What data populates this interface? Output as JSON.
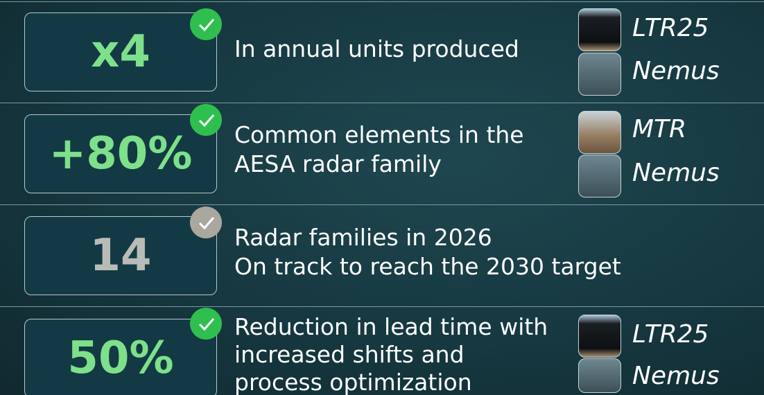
{
  "rows": [
    {
      "metric": "x4",
      "description": [
        "In annual units produced"
      ],
      "products": [
        "LTR25",
        "Nemus"
      ]
    },
    {
      "metric": "+80%",
      "description": [
        "Common elements in the",
        "AESA radar family"
      ],
      "products": [
        "MTR",
        "Nemus"
      ]
    },
    {
      "metric": "14",
      "description": [
        "Radar families in 2026",
        "On track to reach the 2030 target"
      ],
      "products": []
    },
    {
      "metric": "50%",
      "description": [
        "Reduction in lead time with",
        "increased shifts and",
        "process optimization"
      ],
      "products": [
        "LTR25",
        "Nemus"
      ]
    }
  ]
}
